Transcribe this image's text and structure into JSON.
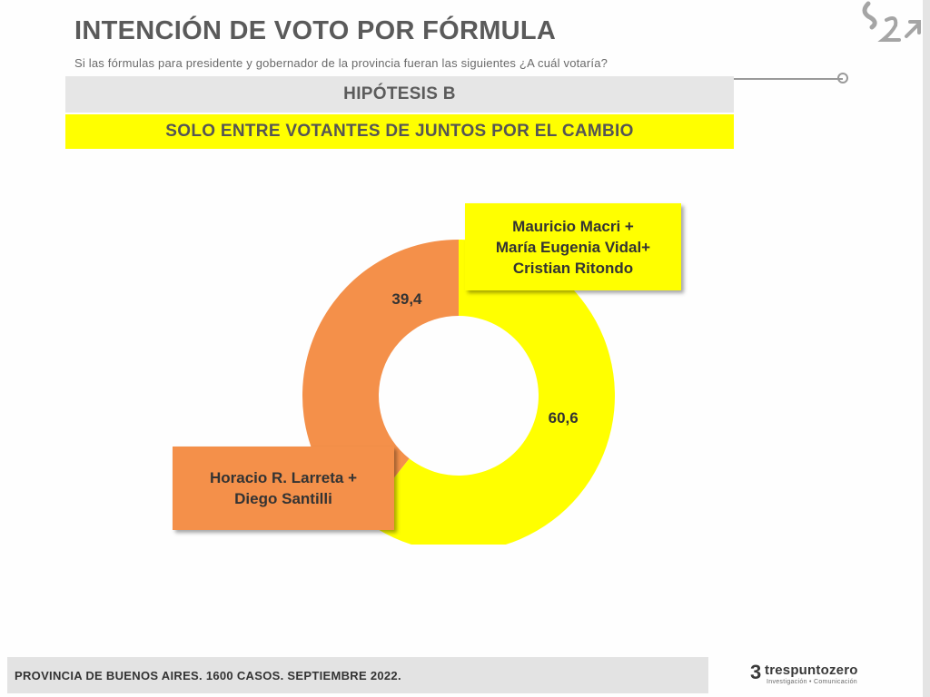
{
  "header": {
    "title": "INTENCIÓN DE VOTO POR FÓRMULA",
    "subtitle": "Si las fórmulas para presidente y gobernador de la provincia fueran las siguientes ¿A cuál votaría?"
  },
  "hypothesis_label": "HIPÓTESIS B",
  "filter_label": "SOLO ENTRE VOTANTES DE JUNTOS POR EL CAMBIO",
  "legend": {
    "macri": [
      "Mauricio Macri +",
      "María Eugenia Vidal+",
      "Cristian Ritondo"
    ],
    "larreta": [
      "Horacio R. Larreta +",
      "Diego Santilli"
    ]
  },
  "chart_data": {
    "type": "pie",
    "variant": "donut",
    "title": "",
    "slices": [
      {
        "name": "Mauricio Macri + María Eugenia Vidal+ Cristian Ritondo",
        "value": 60.6,
        "label": "60,6",
        "color": "#ffff00"
      },
      {
        "name": "Horacio R. Larreta + Diego Santilli",
        "value": 39.4,
        "label": "39,4",
        "color": "#f4904a"
      }
    ]
  },
  "footer": {
    "text": "PROVINCIA DE BUENOS AIRES. 1600 CASOS. SEPTIEMBRE 2022.",
    "brand_name": "trespuntozero",
    "brand_tagline": "Investigación • Comunicación",
    "brand_mark": "3"
  },
  "colors": {
    "yellow": "#ffff00",
    "orange": "#f4904a",
    "title_gray": "#5a5a5a"
  }
}
